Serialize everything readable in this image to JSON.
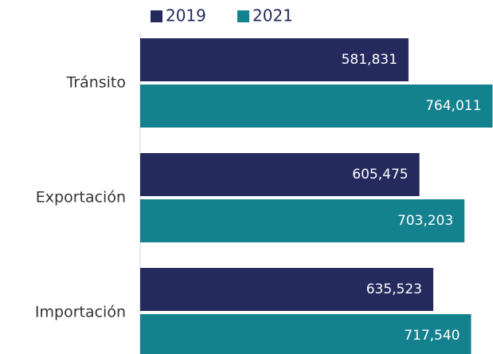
{
  "chart_data": {
    "type": "hbar",
    "categories": [
      "Tránsito",
      "Exportación",
      "Importación"
    ],
    "series": [
      {
        "name": "2019",
        "color": "#252a5e",
        "values": [
          581831,
          605475,
          635523
        ],
        "value_labels": [
          "581,831",
          "605,475",
          "635,523"
        ]
      },
      {
        "name": "2021",
        "color": "#14828e",
        "values": [
          764011,
          703203,
          717540
        ],
        "value_labels": [
          "764,011",
          "703,203",
          "717,540"
        ]
      }
    ],
    "xlim": [
      0,
      765000
    ]
  }
}
